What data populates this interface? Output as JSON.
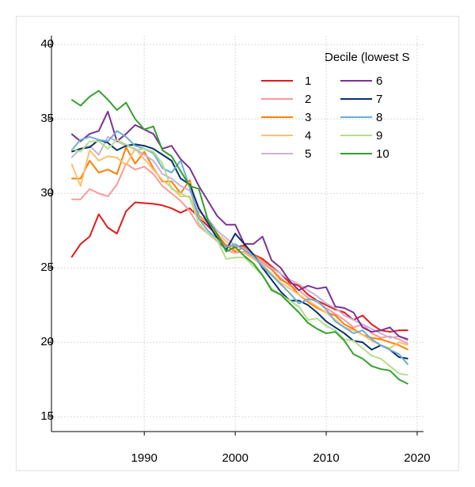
{
  "chart_data": {
    "type": "line",
    "legend_title": "Decile (lowest S",
    "x": [
      1982,
      1983,
      1984,
      1985,
      1986,
      1987,
      1988,
      1989,
      1990,
      1991,
      1992,
      1993,
      1994,
      1995,
      1996,
      1997,
      1998,
      1999,
      2000,
      2001,
      2002,
      2003,
      2004,
      2005,
      2006,
      2007,
      2008,
      2009,
      2010,
      2011,
      2012,
      2013,
      2014,
      2015,
      2016,
      2017,
      2018,
      2019
    ],
    "xlim": [
      1979.8,
      2020.7
    ],
    "xticks": [
      1990,
      2000,
      2010,
      2020
    ],
    "ylim": [
      14.0,
      40.6
    ],
    "yticks": [
      15,
      20,
      25,
      30,
      35,
      40
    ],
    "grid": true,
    "legend": "top-right",
    "series": [
      {
        "name": "1",
        "color": "#e31a1c",
        "values": [
          25.7,
          26.6,
          27.1,
          28.6,
          27.7,
          27.3,
          28.8,
          29.4,
          29.35,
          29.3,
          29.2,
          29.0,
          28.7,
          29.0,
          28.4,
          27.8,
          27.2,
          26.5,
          26.4,
          26.5,
          25.9,
          25.6,
          25.1,
          24.6,
          24.0,
          23.8,
          23.2,
          22.8,
          22.5,
          22.2,
          22.0,
          21.5,
          21.8,
          21.2,
          20.8,
          20.7,
          20.8,
          20.8
        ]
      },
      {
        "name": "2",
        "color": "#fb9a99",
        "values": [
          29.6,
          29.6,
          30.3,
          30.0,
          29.8,
          30.6,
          32.0,
          31.6,
          31.8,
          31.3,
          30.5,
          30.0,
          29.5,
          28.8,
          27.8,
          27.3,
          26.8,
          26.2,
          26.0,
          26.1,
          25.7,
          25.3,
          24.9,
          24.3,
          23.8,
          23.5,
          23.0,
          22.7,
          22.3,
          21.9,
          21.5,
          21.0,
          21.2,
          20.6,
          20.3,
          20.4,
          20.2,
          19.9
        ]
      },
      {
        "name": "3",
        "color": "#ff7f00",
        "values": [
          31.0,
          31.0,
          32.2,
          31.4,
          31.6,
          31.3,
          33.1,
          32.0,
          32.8,
          31.7,
          30.8,
          30.8,
          30.0,
          30.9,
          28.5,
          28.0,
          27.1,
          26.5,
          26.1,
          26.4,
          25.9,
          25.5,
          24.9,
          24.2,
          23.9,
          23.2,
          22.7,
          22.3,
          22.0,
          21.8,
          21.2,
          20.9,
          20.5,
          20.3,
          20.2,
          20.0,
          19.8,
          19.5
        ]
      },
      {
        "name": "4",
        "color": "#fdbf6f",
        "values": [
          32.0,
          30.5,
          32.9,
          32.2,
          32.5,
          32.4,
          31.9,
          33.0,
          32.3,
          31.6,
          30.9,
          30.4,
          29.8,
          29.8,
          28.4,
          28.0,
          27.3,
          26.8,
          26.2,
          26.0,
          25.6,
          25.2,
          24.6,
          24.0,
          23.6,
          23.2,
          22.8,
          22.4,
          22.0,
          21.5,
          21.0,
          20.8,
          20.5,
          20.1,
          19.8,
          19.6,
          20.0,
          19.8
        ]
      },
      {
        "name": "5",
        "color": "#cab2d6",
        "values": [
          32.4,
          33.0,
          33.2,
          32.6,
          33.8,
          33.5,
          33.2,
          33.0,
          32.6,
          32.2,
          31.3,
          31.0,
          30.5,
          30.2,
          28.8,
          28.3,
          27.5,
          27.0,
          26.5,
          26.3,
          25.8,
          25.4,
          25.0,
          24.6,
          24.2,
          23.9,
          23.5,
          23.1,
          22.6,
          22.3,
          21.8,
          21.5,
          21.2,
          20.9,
          20.6,
          20.3,
          20.4,
          20.1
        ]
      },
      {
        "name": "6",
        "color": "#7b3294",
        "values": [
          34.0,
          33.5,
          34.0,
          34.2,
          35.5,
          33.5,
          34.0,
          34.6,
          34.3,
          34.0,
          33.0,
          33.2,
          32.3,
          31.7,
          30.5,
          29.5,
          28.5,
          27.9,
          27.9,
          26.6,
          26.6,
          27.1,
          25.5,
          25.0,
          24.1,
          23.5,
          23.8,
          23.6,
          23.7,
          22.4,
          22.3,
          22.0,
          21.0,
          20.7,
          20.8,
          21.0,
          20.4,
          20.2
        ]
      },
      {
        "name": "7",
        "color": "#08306b",
        "values": [
          32.8,
          33.0,
          33.1,
          33.6,
          33.4,
          32.9,
          33.2,
          33.3,
          33.2,
          33.0,
          32.6,
          32.2,
          31.0,
          30.6,
          29.0,
          28.0,
          27.0,
          26.2,
          27.3,
          26.6,
          25.9,
          25.0,
          24.2,
          23.4,
          22.8,
          22.8,
          22.5,
          22.0,
          21.4,
          21.0,
          20.6,
          20.1,
          20.0,
          19.5,
          19.8,
          19.5,
          19.0,
          18.9
        ]
      },
      {
        "name": "8",
        "color": "#6baed6",
        "values": [
          32.9,
          33.6,
          33.8,
          33.6,
          33.5,
          34.2,
          33.8,
          33.2,
          33.0,
          32.7,
          31.7,
          31.4,
          32.2,
          30.4,
          28.3,
          27.5,
          26.9,
          26.4,
          26.6,
          26.2,
          25.8,
          25.1,
          24.5,
          23.9,
          23.3,
          22.6,
          22.9,
          22.8,
          22.2,
          21.4,
          21.0,
          20.6,
          20.8,
          20.2,
          19.8,
          19.5,
          19.2,
          18.5
        ]
      },
      {
        "name": "9",
        "color": "#b2df8a",
        "values": [
          33.0,
          32.8,
          33.5,
          33.5,
          33.0,
          33.6,
          33.3,
          32.9,
          33.0,
          32.8,
          32.0,
          30.3,
          30.0,
          29.7,
          28.0,
          27.3,
          26.9,
          25.6,
          25.7,
          25.7,
          25.1,
          24.5,
          23.6,
          23.2,
          22.8,
          22.4,
          21.5,
          21.6,
          21.1,
          20.8,
          20.2,
          20.1,
          19.6,
          19.1,
          18.9,
          18.4,
          17.9,
          17.8
        ]
      },
      {
        "name": "10",
        "color": "#33a02c",
        "values": [
          36.3,
          35.9,
          36.5,
          36.9,
          36.3,
          35.6,
          36.1,
          35.0,
          34.3,
          34.5,
          32.9,
          32.5,
          31.5,
          30.5,
          30.3,
          28.2,
          27.3,
          26.1,
          26.4,
          25.8,
          25.3,
          24.5,
          23.5,
          23.2,
          22.6,
          22.0,
          21.3,
          20.9,
          20.6,
          20.7,
          20.1,
          19.2,
          18.9,
          18.4,
          18.2,
          18.1,
          17.5,
          17.2
        ]
      }
    ]
  }
}
